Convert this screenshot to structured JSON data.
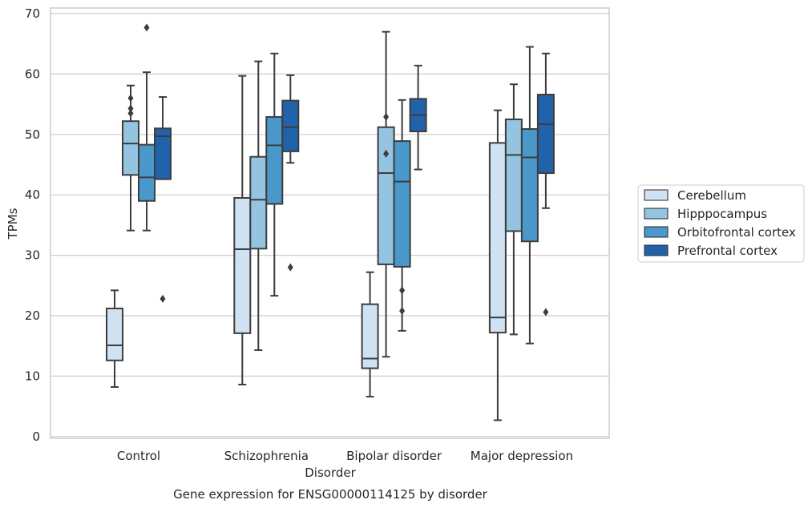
{
  "chart_data": {
    "type": "boxplot",
    "title": "",
    "caption": "Gene expression for ENSG00000114125 by disorder",
    "xlabel": "Disorder",
    "ylabel": "TPMs",
    "ylim": [
      -0.3,
      71
    ],
    "yticks": [
      0,
      10,
      20,
      30,
      40,
      50,
      60,
      70
    ],
    "grid": "horizontal",
    "legend_position": "right",
    "categories": [
      "Control",
      "Schizophrenia",
      "Bipolar disorder",
      "Major depression"
    ],
    "series": [
      {
        "name": "Cerebellum",
        "color": "#d0e1f2",
        "boxes": [
          {
            "min": 8.2,
            "q1": 12.6,
            "median": 15.1,
            "q3": 21.2,
            "max": 24.2,
            "outliers": []
          },
          {
            "min": 8.6,
            "q1": 17.1,
            "median": 31.0,
            "q3": 39.5,
            "max": 59.7,
            "outliers": []
          },
          {
            "min": 6.6,
            "q1": 11.3,
            "median": 12.9,
            "q3": 21.9,
            "max": 27.2,
            "outliers": []
          },
          {
            "min": 2.7,
            "q1": 17.2,
            "median": 19.7,
            "q3": 48.6,
            "max": 54.0,
            "outliers": []
          }
        ]
      },
      {
        "name": "Hipppocampus",
        "color": "#94c4df",
        "boxes": [
          {
            "min": 34.1,
            "q1": 43.3,
            "median": 48.5,
            "q3": 52.2,
            "max": 58.1,
            "outliers": [
              53.5,
              54.3,
              56.0
            ]
          },
          {
            "min": 14.3,
            "q1": 31.1,
            "median": 39.2,
            "q3": 46.3,
            "max": 62.1,
            "outliers": []
          },
          {
            "min": 13.2,
            "q1": 28.5,
            "median": 43.6,
            "q3": 51.2,
            "max": 67.0,
            "outliers": [
              46.8,
              52.9
            ]
          },
          {
            "min": 16.9,
            "q1": 34.0,
            "median": 46.6,
            "q3": 52.5,
            "max": 58.3,
            "outliers": []
          }
        ]
      },
      {
        "name": "Orbitofrontal cortex",
        "color": "#4a98c9",
        "boxes": [
          {
            "min": 34.1,
            "q1": 39.0,
            "median": 42.9,
            "q3": 48.3,
            "max": 60.3,
            "outliers": [
              67.7
            ]
          },
          {
            "min": 23.3,
            "q1": 38.5,
            "median": 48.2,
            "q3": 52.9,
            "max": 63.4,
            "outliers": []
          },
          {
            "min": 17.5,
            "q1": 28.1,
            "median": 42.2,
            "q3": 48.9,
            "max": 55.7,
            "outliers": [
              20.8,
              24.2
            ]
          },
          {
            "min": 15.4,
            "q1": 32.3,
            "median": 46.2,
            "q3": 50.9,
            "max": 64.5,
            "outliers": []
          }
        ]
      },
      {
        "name": "Prefrontal cortex",
        "color": "#2163aa",
        "boxes": [
          {
            "min": 42.6,
            "q1": 42.6,
            "median": 49.7,
            "q3": 51.0,
            "max": 56.2,
            "outliers": [
              22.8
            ]
          },
          {
            "min": 45.3,
            "q1": 47.2,
            "median": 51.2,
            "q3": 55.6,
            "max": 59.8,
            "outliers": [
              28.0
            ]
          },
          {
            "min": 44.2,
            "q1": 50.5,
            "median": 53.2,
            "q3": 55.9,
            "max": 61.4,
            "outliers": []
          },
          {
            "min": 37.8,
            "q1": 43.6,
            "median": 51.7,
            "q3": 56.6,
            "max": 63.4,
            "outliers": [
              20.6
            ]
          }
        ]
      }
    ]
  }
}
